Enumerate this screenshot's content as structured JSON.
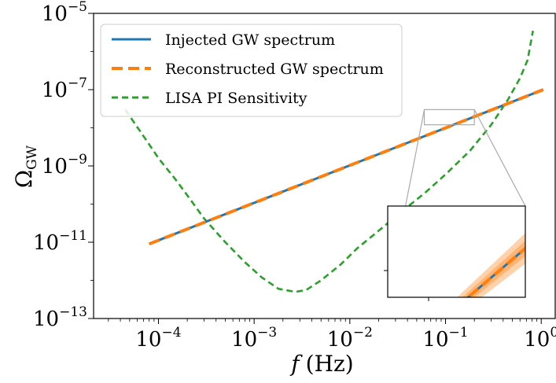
{
  "chart_data": {
    "type": "line",
    "xscale": "log",
    "yscale": "log",
    "xlim": [
      2.1e-05,
      1.4
    ],
    "ylim": [
      1e-13,
      1e-05
    ],
    "xlabel": {
      "var": "f",
      "unit": "(Hz)"
    },
    "ylabel": {
      "base": "Ω",
      "sub": "GW"
    },
    "x_ticks": [
      {
        "base": "10",
        "exp": "−4",
        "value": 0.0001
      },
      {
        "base": "10",
        "exp": "−3",
        "value": 0.001
      },
      {
        "base": "10",
        "exp": "−2",
        "value": 0.01
      },
      {
        "base": "10",
        "exp": "−1",
        "value": 0.1
      },
      {
        "base": "10",
        "exp": "0",
        "value": 1
      }
    ],
    "y_ticks": [
      {
        "base": "10",
        "exp": "−5",
        "value": 1e-05
      },
      {
        "base": "10",
        "exp": "−7",
        "value": 1e-07
      },
      {
        "base": "10",
        "exp": "−9",
        "value": 1e-09
      },
      {
        "base": "10",
        "exp": "−11",
        "value": 1e-11
      },
      {
        "base": "10",
        "exp": "−13",
        "value": 1e-13
      }
    ],
    "series": [
      {
        "name": "Injected GW spectrum",
        "color": "#1f77b4",
        "style": "solid",
        "x": [
          8e-05,
          1.05
        ],
        "y": [
          9e-12,
          1e-07
        ]
      },
      {
        "name": "Reconstructed GW spectrum",
        "color": "#ff7f0e",
        "style": "dashed",
        "x": [
          8e-05,
          1.05
        ],
        "y": [
          9e-12,
          1e-07
        ]
      },
      {
        "name": "LISA PI Sensitivity",
        "color": "#2ca02c",
        "style": "dashed",
        "x": [
          4.5e-05,
          7e-05,
          0.0001,
          0.00015,
          0.0002,
          0.0003,
          0.0005,
          0.0008,
          0.0012,
          0.0018,
          0.0027,
          0.0035,
          0.005,
          0.008,
          0.012,
          0.02,
          0.035,
          0.06,
          0.1,
          0.18,
          0.3,
          0.45,
          0.6,
          0.72,
          0.82
        ],
        "y": [
          3e-08,
          6e-09,
          1.6e-09,
          4.5e-10,
          1.7e-10,
          4.2e-11,
          1e-11,
          3e-12,
          1.2e-12,
          6e-13,
          5e-13,
          5.6e-13,
          1e-12,
          2.6e-12,
          7e-12,
          2e-11,
          6.5e-11,
          1.9e-10,
          6e-10,
          2.5e-09,
          1.2e-08,
          5.5e-08,
          2e-07,
          6e-07,
          3.5e-06
        ]
      }
    ],
    "zoom_box": {
      "xlim": [
        0.06,
        0.2
      ],
      "ylim": [
        1.2e-08,
        3e-08
      ]
    },
    "legend_position": "top-left"
  }
}
